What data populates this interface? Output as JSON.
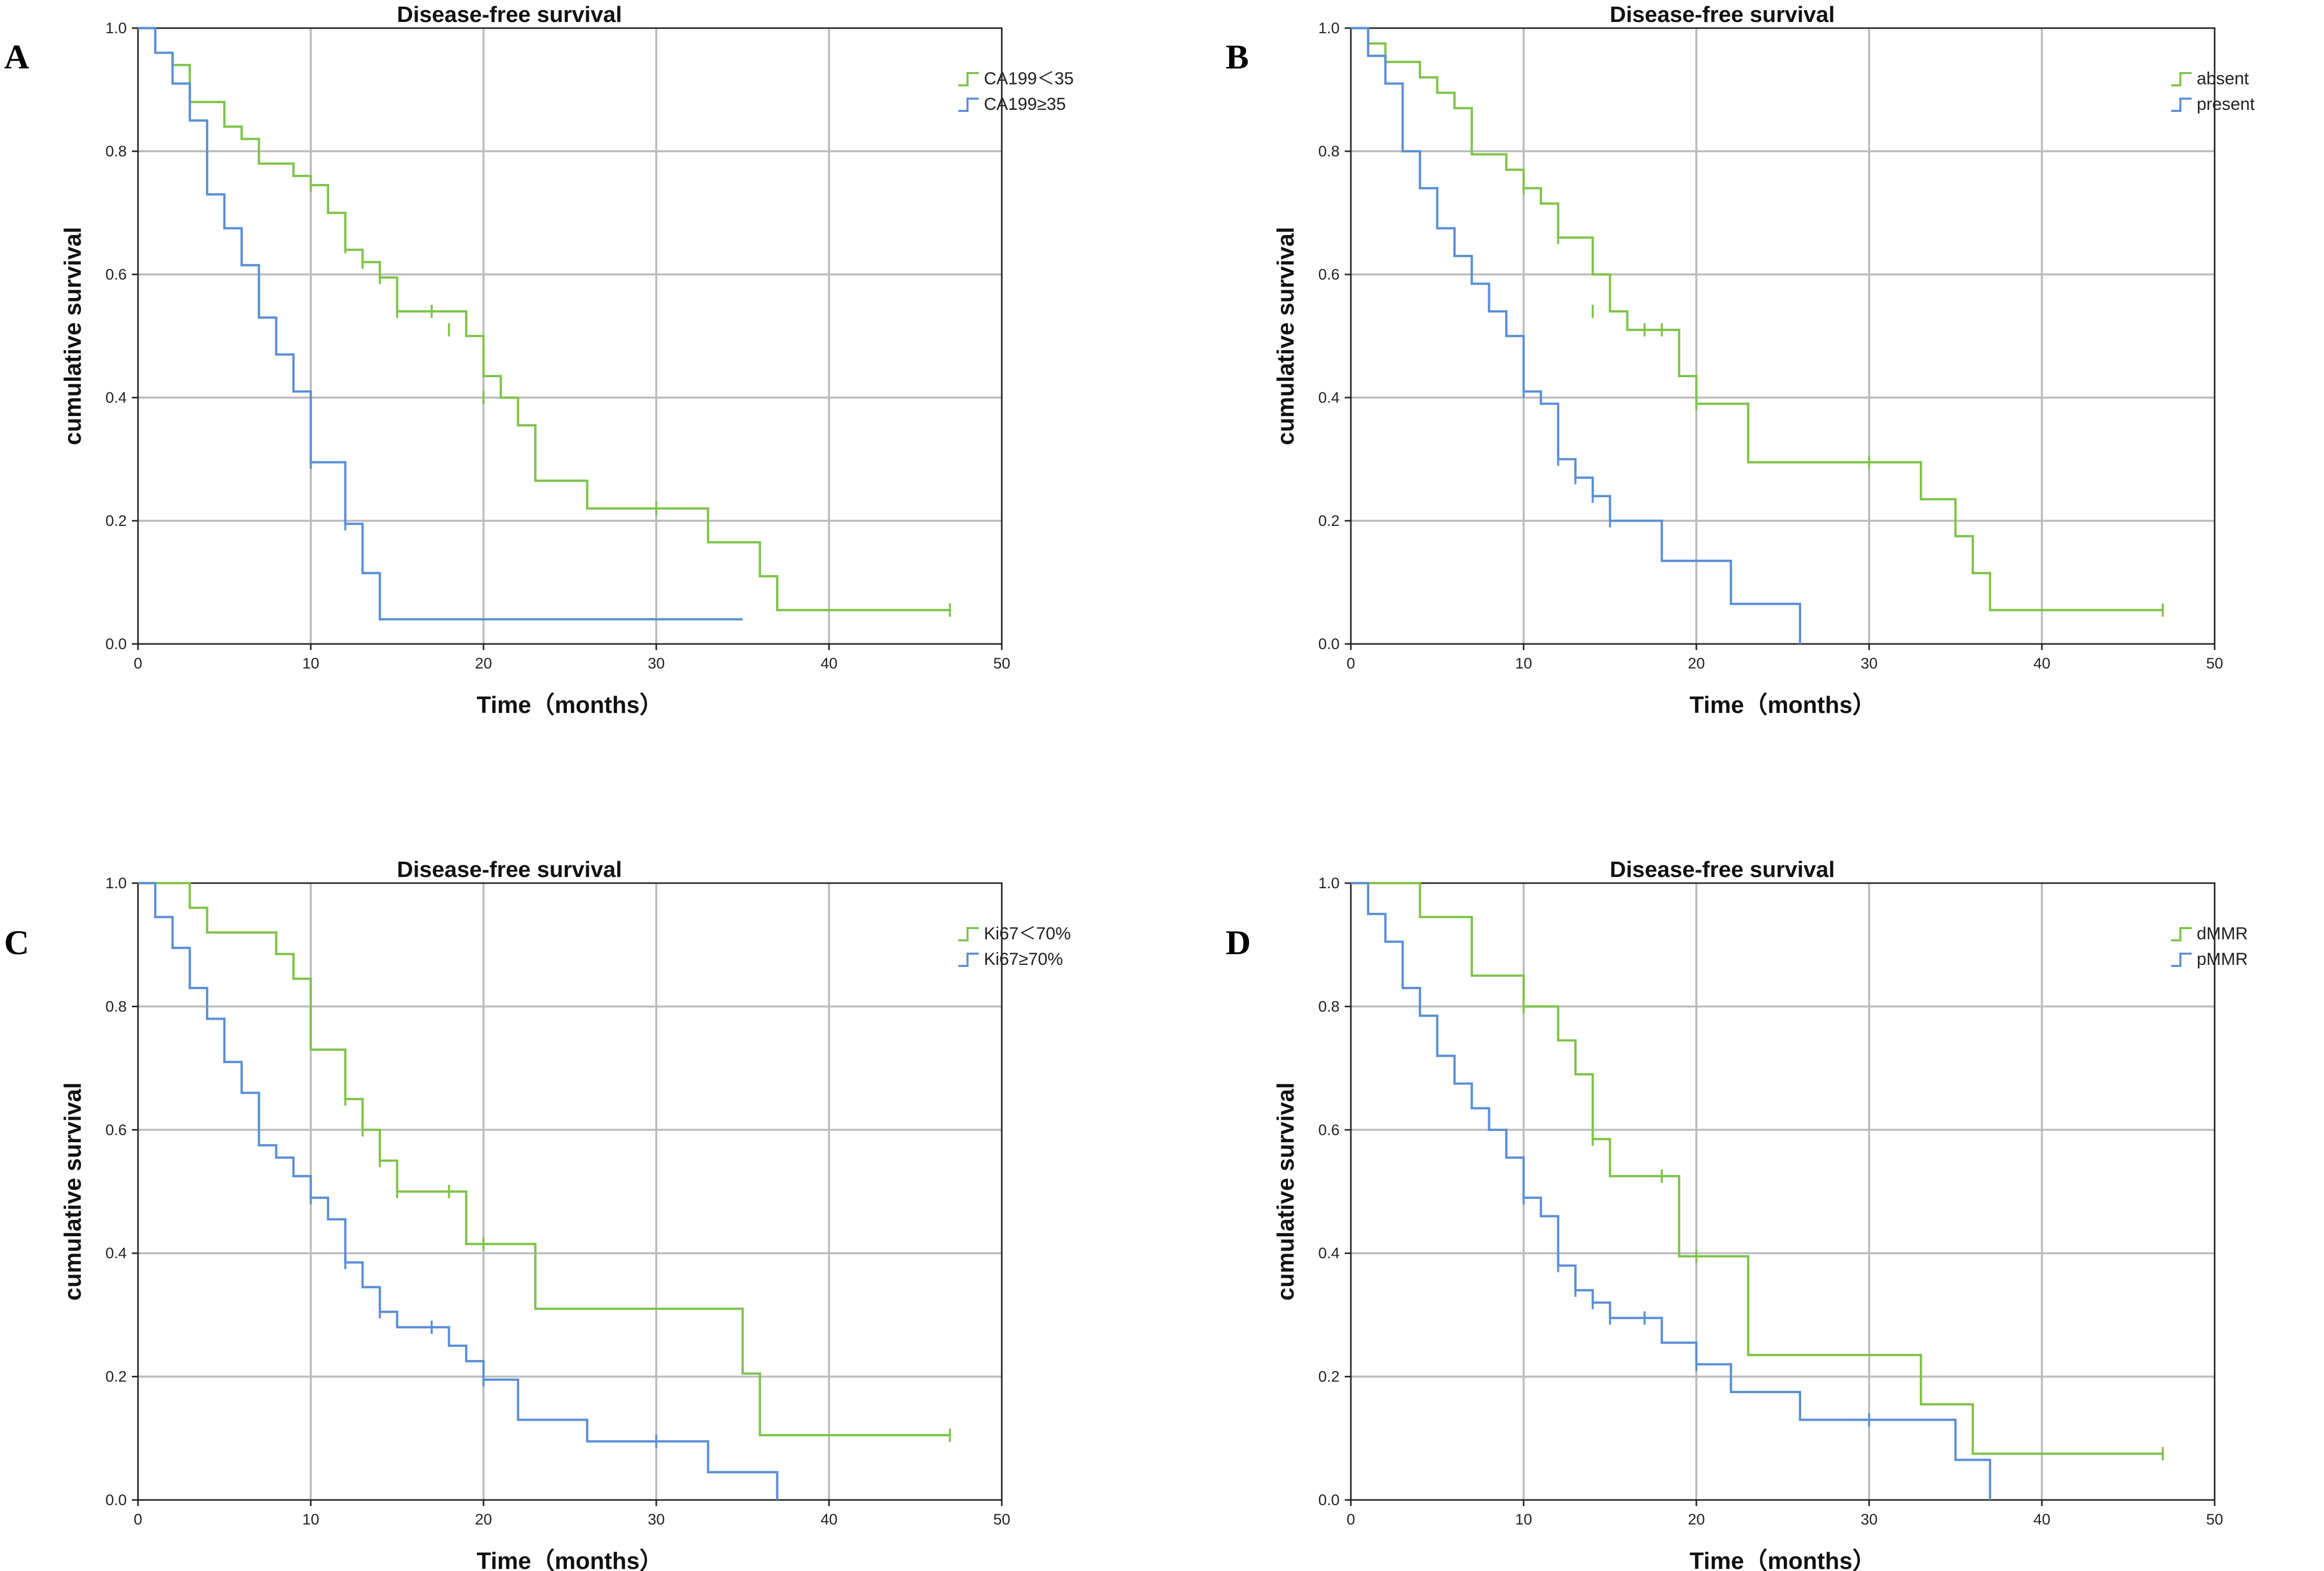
{
  "chart_data": [
    {
      "panel": "A",
      "type": "line",
      "title": "Disease-free survival",
      "xlabel": "Time（months）",
      "ylabel": "cumulative survival",
      "xlim": [
        0,
        50
      ],
      "ylim": [
        0,
        1
      ],
      "xticks": [
        "0",
        "10",
        "20",
        "30",
        "40",
        "50"
      ],
      "yticks": [
        "0.0",
        "0.2",
        "0.4",
        "0.6",
        "0.8",
        "1.0"
      ],
      "grid": true,
      "legend_position": "top-right",
      "series": [
        {
          "name": "CA199＜35",
          "color": "#7fc34b",
          "steps": [
            [
              0,
              1.0
            ],
            [
              1,
              0.96
            ],
            [
              2,
              0.94
            ],
            [
              3,
              0.88
            ],
            [
              5,
              0.84
            ],
            [
              6,
              0.82
            ],
            [
              7,
              0.78
            ],
            [
              9,
              0.76
            ],
            [
              10,
              0.745
            ],
            [
              11,
              0.7
            ],
            [
              12,
              0.64
            ],
            [
              13,
              0.62
            ],
            [
              14,
              0.595
            ],
            [
              15,
              0.54
            ],
            [
              19,
              0.5
            ],
            [
              20,
              0.435
            ],
            [
              21,
              0.4
            ],
            [
              22,
              0.355
            ],
            [
              23,
              0.265
            ],
            [
              26,
              0.22
            ],
            [
              33,
              0.165
            ],
            [
              36,
              0.11
            ],
            [
              37,
              0.055
            ]
          ],
          "end": 47,
          "censored": [
            [
              10,
              0.745
            ],
            [
              12,
              0.645
            ],
            [
              13,
              0.62
            ],
            [
              14,
              0.595
            ],
            [
              15,
              0.54
            ],
            [
              17,
              0.54
            ],
            [
              18,
              0.51
            ],
            [
              20,
              0.4
            ],
            [
              30,
              0.22
            ],
            [
              47,
              0.055
            ]
          ]
        },
        {
          "name": "CA199≥35",
          "color": "#5b8fd6",
          "steps": [
            [
              0,
              1.0
            ],
            [
              1,
              0.96
            ],
            [
              2,
              0.91
            ],
            [
              3,
              0.85
            ],
            [
              4,
              0.73
            ],
            [
              5,
              0.675
            ],
            [
              6,
              0.615
            ],
            [
              7,
              0.53
            ],
            [
              8,
              0.47
            ],
            [
              9,
              0.41
            ],
            [
              10,
              0.295
            ],
            [
              12,
              0.195
            ],
            [
              13,
              0.115
            ],
            [
              14,
              0.04
            ]
          ],
          "end": 35,
          "censored": [
            [
              10,
              0.295
            ],
            [
              12,
              0.195
            ]
          ]
        }
      ]
    },
    {
      "panel": "B",
      "type": "line",
      "title": "Disease-free survival",
      "xlabel": "Time（months）",
      "ylabel": "cumulative survival",
      "xlim": [
        0,
        50
      ],
      "ylim": [
        0,
        1
      ],
      "xticks": [
        "0",
        "10",
        "20",
        "30",
        "40",
        "50"
      ],
      "yticks": [
        "0.0",
        "0.2",
        "0.4",
        "0.6",
        "0.8",
        "1.0"
      ],
      "grid": true,
      "legend_position": "top-right",
      "series": [
        {
          "name": "absent",
          "color": "#7fc34b",
          "steps": [
            [
              0,
              1.0
            ],
            [
              1,
              0.975
            ],
            [
              2,
              0.945
            ],
            [
              4,
              0.92
            ],
            [
              5,
              0.895
            ],
            [
              6,
              0.87
            ],
            [
              7,
              0.795
            ],
            [
              9,
              0.77
            ],
            [
              10,
              0.74
            ],
            [
              11,
              0.715
            ],
            [
              12,
              0.66
            ],
            [
              14,
              0.6
            ],
            [
              15,
              0.54
            ],
            [
              16,
              0.51
            ],
            [
              19,
              0.435
            ],
            [
              20,
              0.39
            ],
            [
              23,
              0.295
            ],
            [
              33,
              0.235
            ],
            [
              35,
              0.175
            ],
            [
              36,
              0.115
            ],
            [
              37,
              0.055
            ]
          ],
          "end": 47,
          "censored": [
            [
              10,
              0.74
            ],
            [
              12,
              0.66
            ],
            [
              14,
              0.54
            ],
            [
              17,
              0.51
            ],
            [
              18,
              0.51
            ],
            [
              20,
              0.39
            ],
            [
              30,
              0.295
            ],
            [
              47,
              0.055
            ]
          ]
        },
        {
          "name": "present",
          "color": "#5b8fd6",
          "steps": [
            [
              0,
              1.0
            ],
            [
              1,
              0.955
            ],
            [
              2,
              0.91
            ],
            [
              3,
              0.8
            ],
            [
              4,
              0.74
            ],
            [
              5,
              0.675
            ],
            [
              6,
              0.63
            ],
            [
              7,
              0.585
            ],
            [
              8,
              0.54
            ],
            [
              9,
              0.5
            ],
            [
              10,
              0.41
            ],
            [
              11,
              0.39
            ],
            [
              12,
              0.3
            ],
            [
              13,
              0.27
            ],
            [
              14,
              0.24
            ],
            [
              15,
              0.2
            ],
            [
              18,
              0.135
            ],
            [
              22,
              0.065
            ],
            [
              26,
              0.0
            ]
          ],
          "end": 26,
          "censored": [
            [
              10,
              0.41
            ],
            [
              12,
              0.3
            ],
            [
              13,
              0.27
            ],
            [
              14,
              0.24
            ],
            [
              15,
              0.2
            ]
          ]
        }
      ]
    },
    {
      "panel": "C",
      "type": "line",
      "title": "Disease-free survival",
      "xlabel": "Time（months）",
      "ylabel": "cumulative survival",
      "xlim": [
        0,
        50
      ],
      "ylim": [
        0,
        1
      ],
      "xticks": [
        "0",
        "10",
        "20",
        "30",
        "40",
        "50"
      ],
      "yticks": [
        "0.0",
        "0.2",
        "0.4",
        "0.6",
        "0.8",
        "1.0"
      ],
      "grid": true,
      "legend_position": "top-right",
      "series": [
        {
          "name": "Ki67＜70%",
          "color": "#7fc34b",
          "steps": [
            [
              0,
              1.0
            ],
            [
              3,
              0.96
            ],
            [
              4,
              0.92
            ],
            [
              8,
              0.885
            ],
            [
              9,
              0.845
            ],
            [
              10,
              0.73
            ],
            [
              12,
              0.65
            ],
            [
              13,
              0.6
            ],
            [
              14,
              0.55
            ],
            [
              15,
              0.5
            ],
            [
              19,
              0.415
            ],
            [
              23,
              0.31
            ],
            [
              35,
              0.205
            ],
            [
              36,
              0.105
            ]
          ],
          "end": 47,
          "censored": [
            [
              12,
              0.65
            ],
            [
              13,
              0.6
            ],
            [
              14,
              0.55
            ],
            [
              15,
              0.5
            ],
            [
              18,
              0.5
            ],
            [
              20,
              0.415
            ],
            [
              47,
              0.105
            ]
          ]
        },
        {
          "name": "Ki67≥70%",
          "color": "#5b8fd6",
          "steps": [
            [
              0,
              1.0
            ],
            [
              1,
              0.945
            ],
            [
              2,
              0.895
            ],
            [
              3,
              0.83
            ],
            [
              4,
              0.78
            ],
            [
              5,
              0.71
            ],
            [
              6,
              0.66
            ],
            [
              7,
              0.575
            ],
            [
              8,
              0.555
            ],
            [
              9,
              0.525
            ],
            [
              10,
              0.49
            ],
            [
              11,
              0.455
            ],
            [
              12,
              0.385
            ],
            [
              13,
              0.345
            ],
            [
              14,
              0.305
            ],
            [
              15,
              0.28
            ],
            [
              18,
              0.25
            ],
            [
              19,
              0.225
            ],
            [
              20,
              0.195
            ],
            [
              22,
              0.13
            ],
            [
              26,
              0.095
            ],
            [
              33,
              0.045
            ],
            [
              37,
              0.0
            ]
          ],
          "end": 37,
          "censored": [
            [
              10,
              0.49
            ],
            [
              12,
              0.385
            ],
            [
              14,
              0.305
            ],
            [
              17,
              0.28
            ],
            [
              20,
              0.195
            ],
            [
              30,
              0.095
            ]
          ]
        }
      ]
    },
    {
      "panel": "D",
      "type": "line",
      "title": "Disease-free survival",
      "xlabel": "Time（months）",
      "ylabel": "cumulative survival",
      "xlim": [
        0,
        50
      ],
      "ylim": [
        0,
        1
      ],
      "xticks": [
        "0",
        "10",
        "20",
        "30",
        "40",
        "50"
      ],
      "yticks": [
        "0.0",
        "0.2",
        "0.4",
        "0.6",
        "0.8",
        "1.0"
      ],
      "grid": true,
      "legend_position": "top-right",
      "series": [
        {
          "name": "dMMR",
          "color": "#7fc34b",
          "steps": [
            [
              0,
              1.0
            ],
            [
              4,
              0.945
            ],
            [
              7,
              0.85
            ],
            [
              10,
              0.8
            ],
            [
              12,
              0.745
            ],
            [
              13,
              0.69
            ],
            [
              14,
              0.585
            ],
            [
              15,
              0.525
            ],
            [
              19,
              0.395
            ],
            [
              23,
              0.235
            ],
            [
              33,
              0.155
            ],
            [
              36,
              0.075
            ]
          ],
          "end": 47,
          "censored": [
            [
              10,
              0.8
            ],
            [
              14,
              0.585
            ],
            [
              18,
              0.525
            ],
            [
              20,
              0.395
            ],
            [
              47,
              0.075
            ]
          ]
        },
        {
          "name": "pMMR",
          "color": "#5b8fd6",
          "steps": [
            [
              0,
              1.0
            ],
            [
              1,
              0.95
            ],
            [
              2,
              0.905
            ],
            [
              3,
              0.83
            ],
            [
              4,
              0.785
            ],
            [
              5,
              0.72
            ],
            [
              6,
              0.675
            ],
            [
              7,
              0.635
            ],
            [
              8,
              0.6
            ],
            [
              9,
              0.555
            ],
            [
              10,
              0.49
            ],
            [
              11,
              0.46
            ],
            [
              12,
              0.38
            ],
            [
              13,
              0.34
            ],
            [
              14,
              0.32
            ],
            [
              15,
              0.295
            ],
            [
              18,
              0.255
            ],
            [
              20,
              0.22
            ],
            [
              22,
              0.175
            ],
            [
              26,
              0.13
            ],
            [
              35,
              0.065
            ],
            [
              37,
              0.0
            ]
          ],
          "end": 37,
          "censored": [
            [
              10,
              0.49
            ],
            [
              12,
              0.38
            ],
            [
              13,
              0.34
            ],
            [
              14,
              0.32
            ],
            [
              15,
              0.295
            ],
            [
              17,
              0.295
            ],
            [
              20,
              0.22
            ],
            [
              30,
              0.13
            ]
          ]
        }
      ]
    }
  ]
}
